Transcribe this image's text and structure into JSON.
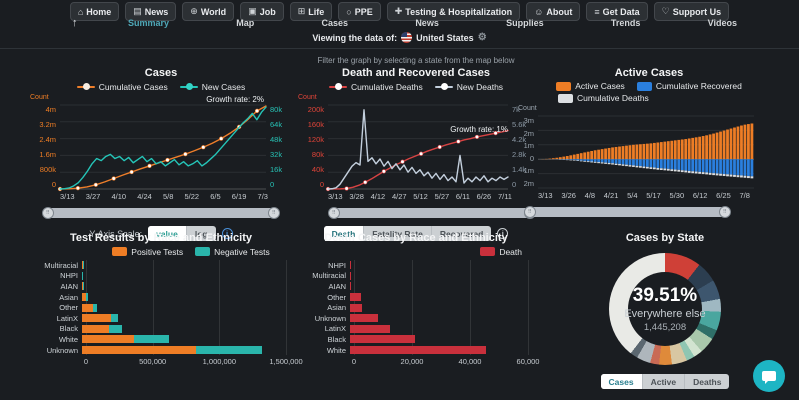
{
  "nav": {
    "scroll_top": "↑",
    "top_items": [
      {
        "icon": "home-icon",
        "glyph": "⌂",
        "label": "Home"
      },
      {
        "icon": "news-icon",
        "glyph": "▤",
        "label": "News"
      },
      {
        "icon": "world-icon",
        "glyph": "⊕",
        "label": "World"
      },
      {
        "icon": "job-icon",
        "glyph": "▣",
        "label": "Job"
      },
      {
        "icon": "life-icon",
        "glyph": "⊞",
        "label": "Life"
      },
      {
        "icon": "ppe-icon",
        "glyph": "○",
        "label": "PPE"
      },
      {
        "icon": "testing-icon",
        "glyph": "✚",
        "label": "Testing & Hospitalization"
      },
      {
        "icon": "about-icon",
        "glyph": "☺",
        "label": "About"
      },
      {
        "icon": "get-data-icon",
        "glyph": "≡",
        "label": "Get Data"
      },
      {
        "icon": "support-icon",
        "glyph": "♡",
        "label": "Support Us"
      }
    ],
    "sub_items": [
      {
        "label": "Summary",
        "active": true
      },
      {
        "label": "Map",
        "active": false
      },
      {
        "label": "Cases",
        "active": false
      },
      {
        "label": "News",
        "active": false
      },
      {
        "label": "Supplies",
        "active": false
      },
      {
        "label": "Trends",
        "active": false
      },
      {
        "label": "Videos",
        "active": false
      }
    ],
    "viewing_prefix": "Viewing the data of:",
    "country": "United States",
    "gear": "⚙"
  },
  "filter_hint": "Filter the graph by selecting a state from the map below",
  "controls": {
    "y_axis_scale": {
      "label": "Y-Axis Scale:",
      "options": [
        "value",
        "log"
      ],
      "active": "value"
    },
    "death_toggle": {
      "options": [
        "Death",
        "Fatality Rate",
        "Recovered"
      ],
      "active": "Death"
    },
    "state_toggle": {
      "options": [
        "Cases",
        "Active",
        "Deaths"
      ],
      "active": "Cases"
    }
  },
  "chart_data": [
    {
      "type": "line",
      "title": "Cases",
      "growth_rate": "Growth rate: 2%",
      "y_left": {
        "label": "Count",
        "color": "#ee7d25",
        "ticks": [
          "4m",
          "3.2m",
          "2.4m",
          "1.6m",
          "800k",
          "0"
        ],
        "max": 4000000
      },
      "y_right": {
        "color": "#27c2b5",
        "ticks": [
          "80k",
          "64k",
          "48k",
          "32k",
          "16k",
          "0"
        ],
        "max": 80000
      },
      "x_ticks": [
        "3/13",
        "3/27",
        "4/10",
        "4/24",
        "5/8",
        "5/22",
        "6/5",
        "6/19",
        "7/3"
      ],
      "series": [
        {
          "name": "Cumulative Cases",
          "color": "#ee7e2a",
          "dot": "#f6ede2",
          "axis": "left",
          "marker_every": 2,
          "values": [
            0,
            0.01,
            0.04,
            0.1,
            0.2,
            0.34,
            0.5,
            0.66,
            0.81,
            0.96,
            1.1,
            1.24,
            1.38,
            1.52,
            1.66,
            1.82,
            1.99,
            2.18,
            2.4,
            2.66,
            2.96,
            3.32,
            3.72,
            3.95
          ],
          "axis_max": 4
        },
        {
          "name": "New Cases",
          "color": "#25c5b8",
          "dot": "#35d4c6",
          "axis": "right",
          "marker_every": 0,
          "values": [
            0,
            0.3,
            1,
            3,
            6,
            11,
            17,
            24,
            29,
            27,
            31,
            33,
            29,
            31,
            27,
            30,
            25,
            28,
            31,
            26,
            29,
            24,
            26,
            22,
            25,
            28,
            23,
            26,
            22,
            24,
            27,
            22,
            25,
            29,
            33,
            38,
            43,
            48,
            53,
            58,
            63,
            67,
            72,
            66,
            73,
            78
          ],
          "axis_max": 80
        }
      ]
    },
    {
      "type": "line",
      "title": "Death and Recovered Cases",
      "growth_rate": "Growth rate: 1%",
      "y_left": {
        "label": "Count",
        "color": "#e04438",
        "ticks": [
          "200k",
          "160k",
          "120k",
          "80k",
          "40k",
          "0"
        ],
        "max": 200000
      },
      "y_right": {
        "color": "#8b98a5",
        "ticks": [
          "7k",
          "5.6k",
          "4.2k",
          "2.8k",
          "1.4k",
          "0"
        ],
        "max": 7000
      },
      "x_ticks": [
        "3/13",
        "3/28",
        "4/12",
        "4/27",
        "5/12",
        "5/27",
        "6/11",
        "6/26",
        "7/11"
      ],
      "series": [
        {
          "name": "Cumulative Deaths",
          "color": "#d84343",
          "dot": "#ffffff",
          "axis": "left",
          "marker_every": 3,
          "values": [
            0,
            0.05,
            0.3,
            1.2,
            4,
            9,
            16,
            24,
            33,
            42,
            50,
            58,
            65,
            72,
            78,
            84,
            90,
            95,
            100,
            105,
            109,
            113,
            117,
            120,
            124,
            127,
            130,
            133,
            136,
            139
          ],
          "axis_max": 200
        },
        {
          "name": "New Deaths",
          "color": "#c3cfdd",
          "dot": "#ffffff",
          "axis": "right",
          "marker_every": 0,
          "values": [
            0,
            0.02,
            0.1,
            0.4,
            0.9,
            1.4,
            1.9,
            2.2,
            2.0,
            6.6,
            2.3,
            2.6,
            2.1,
            2.5,
            1.9,
            2.3,
            1.7,
            2.1,
            1.6,
            2.0,
            1.4,
            1.8,
            1.3,
            1.6,
            1.1,
            1.4,
            0.9,
            1.3,
            0.8,
            1.2,
            0.7,
            1.0,
            0.6,
            2.8,
            0.5,
            0.9,
            0.6,
            1.0,
            0.7,
            1.1,
            0.6,
            0.9,
            0.7,
            1.0,
            0.8,
            1.0
          ],
          "axis_max": 7
        }
      ]
    },
    {
      "type": "diverging-bar",
      "title": "Active Cases",
      "y_left": {
        "label": "Count",
        "color": "#9aa4ae",
        "ticks": [
          "3m",
          "2m",
          "1m",
          "0",
          "1m",
          "2m"
        ],
        "pos_max": 3,
        "neg_max": 2
      },
      "x_ticks": [
        "3/13",
        "3/26",
        "4/8",
        "4/21",
        "5/4",
        "5/17",
        "5/30",
        "6/12",
        "6/25",
        "7/8"
      ],
      "series": [
        {
          "name": "Active Cases",
          "color": "#ee7d25",
          "values": [
            0,
            0.01,
            0.02,
            0.04,
            0.07,
            0.1,
            0.14,
            0.18,
            0.22,
            0.27,
            0.32,
            0.37,
            0.42,
            0.47,
            0.52,
            0.57,
            0.62,
            0.66,
            0.7,
            0.74,
            0.78,
            0.82,
            0.85,
            0.88,
            0.91,
            0.94,
            0.97,
            1.0,
            1.02,
            1.04,
            1.06,
            1.08,
            1.1,
            1.13,
            1.16,
            1.19,
            1.22,
            1.25,
            1.28,
            1.31,
            1.34,
            1.37,
            1.4,
            1.44,
            1.48,
            1.52,
            1.56,
            1.61,
            1.66,
            1.72,
            1.78,
            1.85,
            1.92,
            1.99,
            2.06,
            2.13,
            2.2,
            2.27,
            2.34,
            2.4,
            2.44,
            2.48
          ]
        },
        {
          "name": "Cumulative Recovered",
          "color": "#2a7fde",
          "values": [
            0,
            0,
            0,
            0.005,
            0.01,
            0.015,
            0.02,
            0.03,
            0.04,
            0.05,
            0.06,
            0.08,
            0.1,
            0.12,
            0.14,
            0.16,
            0.18,
            0.2,
            0.22,
            0.24,
            0.26,
            0.28,
            0.31,
            0.33,
            0.36,
            0.38,
            0.41,
            0.43,
            0.46,
            0.48,
            0.51,
            0.53,
            0.56,
            0.58,
            0.61,
            0.63,
            0.65,
            0.67,
            0.7,
            0.72,
            0.74,
            0.77,
            0.79,
            0.82,
            0.84,
            0.86,
            0.88,
            0.9,
            0.92,
            0.95,
            0.97,
            0.99,
            1.01,
            1.03,
            1.05,
            1.07,
            1.09,
            1.11,
            1.13,
            1.15,
            1.17,
            1.19
          ]
        },
        {
          "name": "Cumulative Deaths",
          "color": "#dcdfe2",
          "values": [
            0,
            0,
            0.001,
            0.003,
            0.006,
            0.01,
            0.015,
            0.02,
            0.026,
            0.032,
            0.038,
            0.044,
            0.05,
            0.056,
            0.061,
            0.066,
            0.071,
            0.076,
            0.08,
            0.084,
            0.088,
            0.091,
            0.094,
            0.097,
            0.1,
            0.103,
            0.105,
            0.107,
            0.109,
            0.111,
            0.113,
            0.115,
            0.117,
            0.118,
            0.12,
            0.121,
            0.122,
            0.124,
            0.125,
            0.126,
            0.127,
            0.128,
            0.129,
            0.13,
            0.131,
            0.132,
            0.133,
            0.134,
            0.135,
            0.135,
            0.136,
            0.136,
            0.137,
            0.137,
            0.138,
            0.138,
            0.139,
            0.139,
            0.14,
            0.14,
            0.141,
            0.141
          ]
        }
      ]
    },
    {
      "type": "stacked-hbar",
      "title": "Test Results by Race and Ethnicity",
      "legend": [
        {
          "name": "Positive Tests",
          "color": "#ee7d25"
        },
        {
          "name": "Negative Tests",
          "color": "#2ab5ab"
        }
      ],
      "categories": [
        "Multiracial",
        "NHPI",
        "AIAN",
        "Asian",
        "Other",
        "LatinX",
        "Black",
        "White",
        "Unknown"
      ],
      "series": [
        {
          "name": "Positive Tests",
          "color": "#ee7d25",
          "values": [
            6000,
            2500,
            9000,
            27000,
            80000,
            212000,
            200000,
            380000,
            840000
          ]
        },
        {
          "name": "Negative Tests",
          "color": "#2ab5ab",
          "values": [
            2500,
            1200,
            2500,
            17000,
            33000,
            52000,
            92000,
            262000,
            480000
          ]
        }
      ],
      "x_ticks": [
        "0",
        "500,000",
        "1,000,000",
        "1,500,000"
      ],
      "xmax": 1500000
    },
    {
      "type": "hbar",
      "title": "Death Cases by Race and Ethnicity",
      "legend": [
        {
          "name": "Death",
          "color": "#c9303c"
        }
      ],
      "categories": [
        "NHPI",
        "Multiracial",
        "AIAN",
        "Other",
        "Asian",
        "Unknown",
        "LatinX",
        "Black",
        "White"
      ],
      "series": [
        {
          "name": "Death",
          "color": "#c9303c",
          "values": [
            150,
            350,
            500,
            3600,
            3900,
            9500,
            13600,
            22000,
            46000
          ]
        }
      ],
      "x_ticks": [
        "0",
        "20,000",
        "40,000",
        "60,000"
      ],
      "xmax": 60000
    },
    {
      "type": "donut",
      "title": "Cases by State",
      "center": {
        "pct": "39.51%",
        "label": "Everywhere else",
        "value": "1,445,208"
      },
      "slices": [
        {
          "color": "#cf4037",
          "pct": 10.5
        },
        {
          "color": "#2c3e50",
          "pct": 6.0
        },
        {
          "color": "#3d566e",
          "pct": 5.6
        },
        {
          "color": "#9fb8c2",
          "pct": 3.7
        },
        {
          "color": "#4aa69f",
          "pct": 5.4
        },
        {
          "color": "#2f6f68",
          "pct": 2.8
        },
        {
          "color": "#a9c8ab",
          "pct": 4.6
        },
        {
          "color": "#d2e4d0",
          "pct": 2.6
        },
        {
          "color": "#8fc6b2",
          "pct": 2.4
        },
        {
          "color": "#d8c7a2",
          "pct": 4.4
        },
        {
          "color": "#df8a3a",
          "pct": 3.7
        },
        {
          "color": "#c96a55",
          "pct": 2.6
        },
        {
          "color": "#aeb6bc",
          "pct": 4.0
        },
        {
          "color": "#5b6770",
          "pct": 2.2
        },
        {
          "color": "#e9eae6",
          "pct": 39.51,
          "label": "Everywhere else"
        }
      ]
    }
  ]
}
